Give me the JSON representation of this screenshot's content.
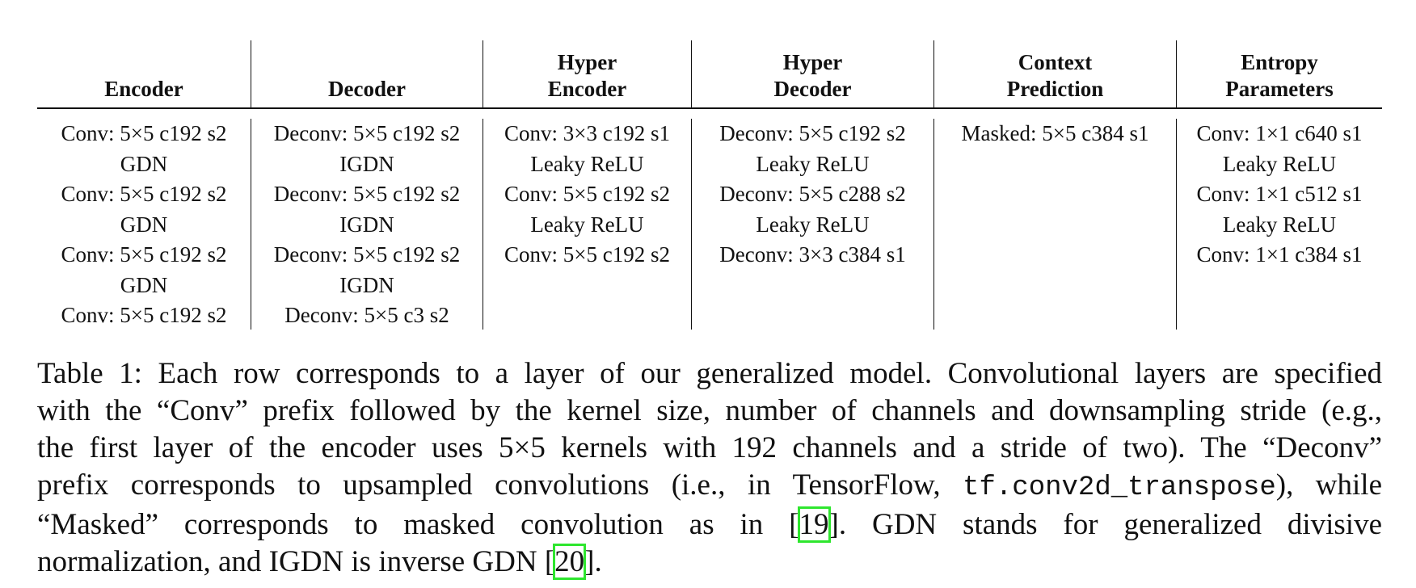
{
  "table": {
    "columns": [
      {
        "header": [
          "Encoder"
        ],
        "cells": [
          "Conv: 5×5 c192 s2",
          "GDN",
          "Conv: 5×5 c192 s2",
          "GDN",
          "Conv: 5×5 c192 s2",
          "GDN",
          "Conv: 5×5 c192 s2"
        ]
      },
      {
        "header": [
          "Decoder"
        ],
        "cells": [
          "Deconv: 5×5 c192 s2",
          "IGDN",
          "Deconv: 5×5 c192 s2",
          "IGDN",
          "Deconv: 5×5 c192 s2",
          "IGDN",
          "Deconv: 5×5 c3 s2"
        ]
      },
      {
        "header": [
          "Hyper",
          "Encoder"
        ],
        "cells": [
          "Conv: 3×3 c192 s1",
          "Leaky ReLU",
          "Conv: 5×5 c192 s2",
          "Leaky ReLU",
          "Conv: 5×5 c192 s2"
        ]
      },
      {
        "header": [
          "Hyper",
          "Decoder"
        ],
        "cells": [
          "Deconv: 5×5 c192 s2",
          "Leaky ReLU",
          "Deconv: 5×5 c288 s2",
          "Leaky ReLU",
          "Deconv: 3×3 c384 s1"
        ]
      },
      {
        "header": [
          "Context",
          "Prediction"
        ],
        "cells": [
          "Masked: 5×5 c384 s1"
        ]
      },
      {
        "header": [
          "Entropy",
          "Parameters"
        ],
        "cells": [
          "Conv: 1×1 c640 s1",
          "Leaky ReLU",
          "Conv: 1×1 c512 s1",
          "Leaky ReLU",
          "Conv: 1×1 c384 s1"
        ]
      }
    ]
  },
  "caption": {
    "line1": "Table 1: Each row corresponds to a layer of our generalized model. Convolutional layers are specified",
    "line2": "with the “Conv” prefix followed by the kernel size, number of channels and downsampling stride (e.g.,",
    "line3": "the first layer of the encoder uses 5×5 kernels with 192 channels and a stride of two). The “Deconv”",
    "line4_pre": "prefix corresponds to upsampled convolutions (i.e., in TensorFlow, ",
    "line4_code": "tf.conv2d_transpose",
    "line4_post": "), while",
    "line5_pre": "“Masked” corresponds to masked convolution as in [",
    "cite1": "19",
    "line5_post": "]. GDN stands for generalized divisive",
    "line6_pre": "normalization, and IGDN is inverse GDN [",
    "cite2": "20",
    "line6_post": "]."
  },
  "colors": {
    "text": "#111111",
    "citation_box": "#2ee62e"
  }
}
